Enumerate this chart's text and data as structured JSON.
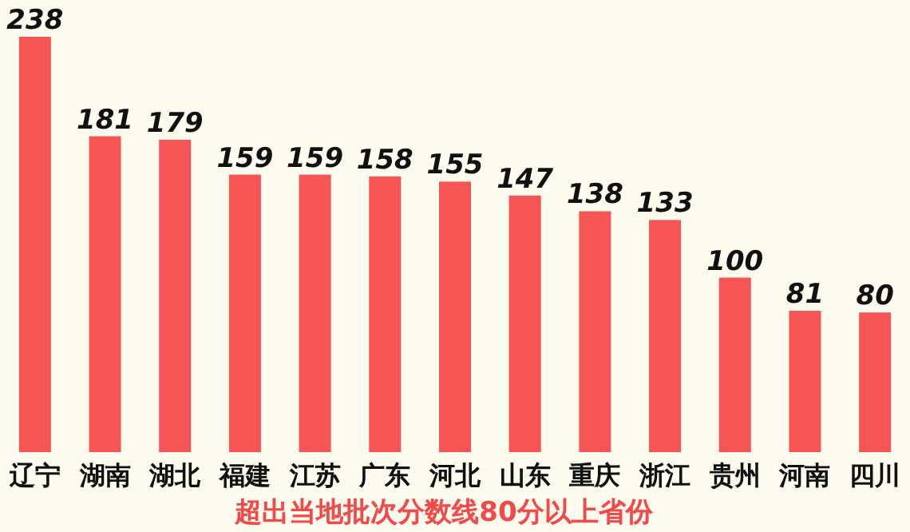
{
  "chart_data": {
    "type": "bar",
    "title": "超出当地批次分数线80分以上省份",
    "categories": [
      "辽宁",
      "湖南",
      "湖北",
      "福建",
      "江苏",
      "广东",
      "河北",
      "山东",
      "重庆",
      "浙江",
      "贵州",
      "河南",
      "四川"
    ],
    "values": [
      238,
      181,
      179,
      159,
      159,
      158,
      155,
      147,
      138,
      133,
      100,
      81,
      80
    ],
    "color": "#f65555",
    "data_labels": true
  }
}
